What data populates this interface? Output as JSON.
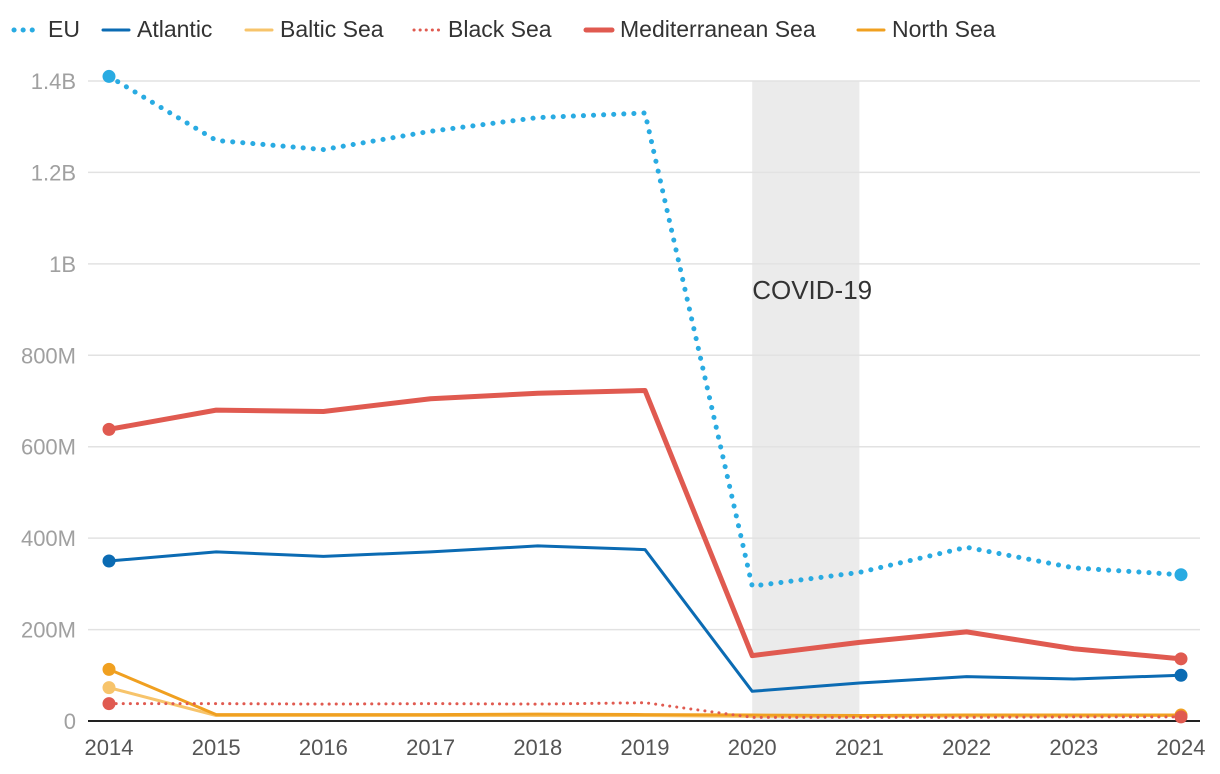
{
  "chart_data": {
    "type": "line",
    "title": "",
    "xlabel": "",
    "ylabel": "",
    "x": [
      2014,
      2015,
      2016,
      2017,
      2018,
      2019,
      2020,
      2021,
      2022,
      2023,
      2024
    ],
    "ylim": [
      0,
      1400000000
    ],
    "yticks": [
      0,
      200000000,
      400000000,
      600000000,
      800000000,
      1000000000,
      1200000000,
      1400000000
    ],
    "ytick_labels": [
      "0",
      "200M",
      "400M",
      "600M",
      "800M",
      "1B",
      "1.2B",
      "1.4B"
    ],
    "xtick_labels": [
      "2014",
      "2015",
      "2016",
      "2017",
      "2018",
      "2019",
      "2020",
      "2021",
      "2022",
      "2023",
      "2024"
    ],
    "grid": true,
    "legend_position": "top",
    "annotation": {
      "label": "COVID-19",
      "x_start": 2020,
      "x_end": 2021,
      "color": "#ebebeb"
    },
    "series": [
      {
        "name": "EU",
        "color": "#29abe2",
        "style": "dotted",
        "width": 5,
        "values": [
          1410000000,
          1270000000,
          1250000000,
          1290000000,
          1320000000,
          1330000000,
          295000000,
          325000000,
          380000000,
          335000000,
          320000000
        ]
      },
      {
        "name": "Atlantic",
        "color": "#0b6bb3",
        "style": "solid",
        "width": 3,
        "values": [
          350000000,
          370000000,
          360000000,
          370000000,
          383000000,
          375000000,
          65000000,
          83000000,
          97000000,
          92000000,
          100000000
        ]
      },
      {
        "name": "Baltic Sea",
        "color": "#f7c46b",
        "style": "solid",
        "width": 3,
        "values": [
          73000000,
          12000000,
          12000000,
          12000000,
          12000000,
          12000000,
          10000000,
          10000000,
          11000000,
          11000000,
          12000000
        ]
      },
      {
        "name": "Black Sea",
        "color": "#e05a50",
        "style": "dotted",
        "width": 3,
        "values": [
          38000000,
          38000000,
          37000000,
          38000000,
          37000000,
          40000000,
          8000000,
          8000000,
          8000000,
          9000000,
          9000000
        ]
      },
      {
        "name": "Mediterranean Sea",
        "color": "#e05a50",
        "style": "solid",
        "width": 5,
        "values": [
          638000000,
          680000000,
          677000000,
          705000000,
          717000000,
          723000000,
          143000000,
          172000000,
          195000000,
          158000000,
          136000000
        ]
      },
      {
        "name": "North Sea",
        "color": "#f0a020",
        "style": "solid",
        "width": 3,
        "values": [
          113000000,
          14000000,
          14000000,
          14000000,
          15000000,
          14000000,
          13000000,
          12000000,
          13000000,
          13000000,
          13000000
        ]
      }
    ]
  }
}
